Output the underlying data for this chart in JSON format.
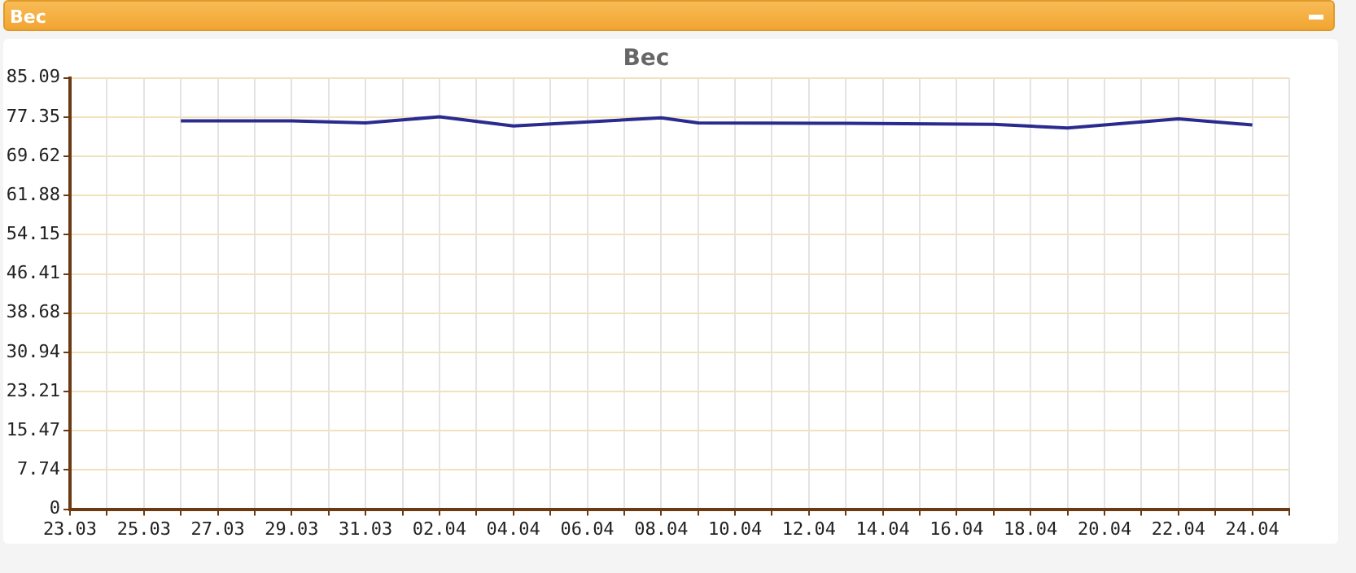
{
  "chart_data": {
    "type": "line",
    "title": "Вес",
    "annotations": [
      "Вес"
    ],
    "x": [
      "--03-26",
      "--03-29",
      "--03-31",
      "--04-02",
      "--04-04",
      "--04-08",
      "--04-09",
      "--04-13",
      "--04-17",
      "--04-19",
      "--04-22",
      "--04-24"
    ],
    "series": [
      {
        "color": "#2b2b8f",
        "values": [
          76.6,
          76.6,
          76.2,
          77.4,
          75.6,
          77.2,
          76.2,
          76.1,
          75.9,
          75.2,
          77.0,
          75.8
        ]
      }
    ],
    "xlim": [
      "--03-23",
      "--04-25"
    ],
    "xticks": [
      {
        "value": "--03-23",
        "label": "23.03"
      },
      {
        "value": "--03-24",
        "label": null
      },
      {
        "value": "--03-25",
        "label": "25.03"
      },
      {
        "value": "--03-26",
        "label": null
      },
      {
        "value": "--03-27",
        "label": "27.03"
      },
      {
        "value": "--03-28",
        "label": null
      },
      {
        "value": "--03-29",
        "label": "29.03"
      },
      {
        "value": "--03-30",
        "label": null
      },
      {
        "value": "--03-31",
        "label": "31.03"
      },
      {
        "value": "--04-01",
        "label": null
      },
      {
        "value": "--04-02",
        "label": "02.04"
      },
      {
        "value": "--04-03",
        "label": null
      },
      {
        "value": "--04-04",
        "label": "04.04"
      },
      {
        "value": "--04-05",
        "label": null
      },
      {
        "value": "--04-06",
        "label": "06.04"
      },
      {
        "value": "--04-07",
        "label": null
      },
      {
        "value": "--04-08",
        "label": "08.04"
      },
      {
        "value": "--04-09",
        "label": null
      },
      {
        "value": "--04-10",
        "label": "10.04"
      },
      {
        "value": "--04-11",
        "label": null
      },
      {
        "value": "--04-12",
        "label": "12.04"
      },
      {
        "value": "--04-13",
        "label": null
      },
      {
        "value": "--04-14",
        "label": "14.04"
      },
      {
        "value": "--04-15",
        "label": null
      },
      {
        "value": "--04-16",
        "label": "16.04"
      },
      {
        "value": "--04-17",
        "label": null
      },
      {
        "value": "--04-18",
        "label": "18.04"
      },
      {
        "value": "--04-19",
        "label": null
      },
      {
        "value": "--04-20",
        "label": "20.04"
      },
      {
        "value": "--04-21",
        "label": null
      },
      {
        "value": "--04-22",
        "label": "22.04"
      },
      {
        "value": "--04-23",
        "label": null
      },
      {
        "value": "--04-24",
        "label": "24.04"
      },
      {
        "value": "--04-25",
        "label": null
      }
    ],
    "ylim": [
      0,
      85.09
    ],
    "yticks": [
      0,
      7.74,
      15.47,
      23.21,
      30.94,
      38.68,
      46.41,
      54.15,
      61.88,
      69.62,
      77.35,
      85.09
    ],
    "grid": true,
    "marker": "none",
    "line_style": "solid",
    "legend": false
  }
}
